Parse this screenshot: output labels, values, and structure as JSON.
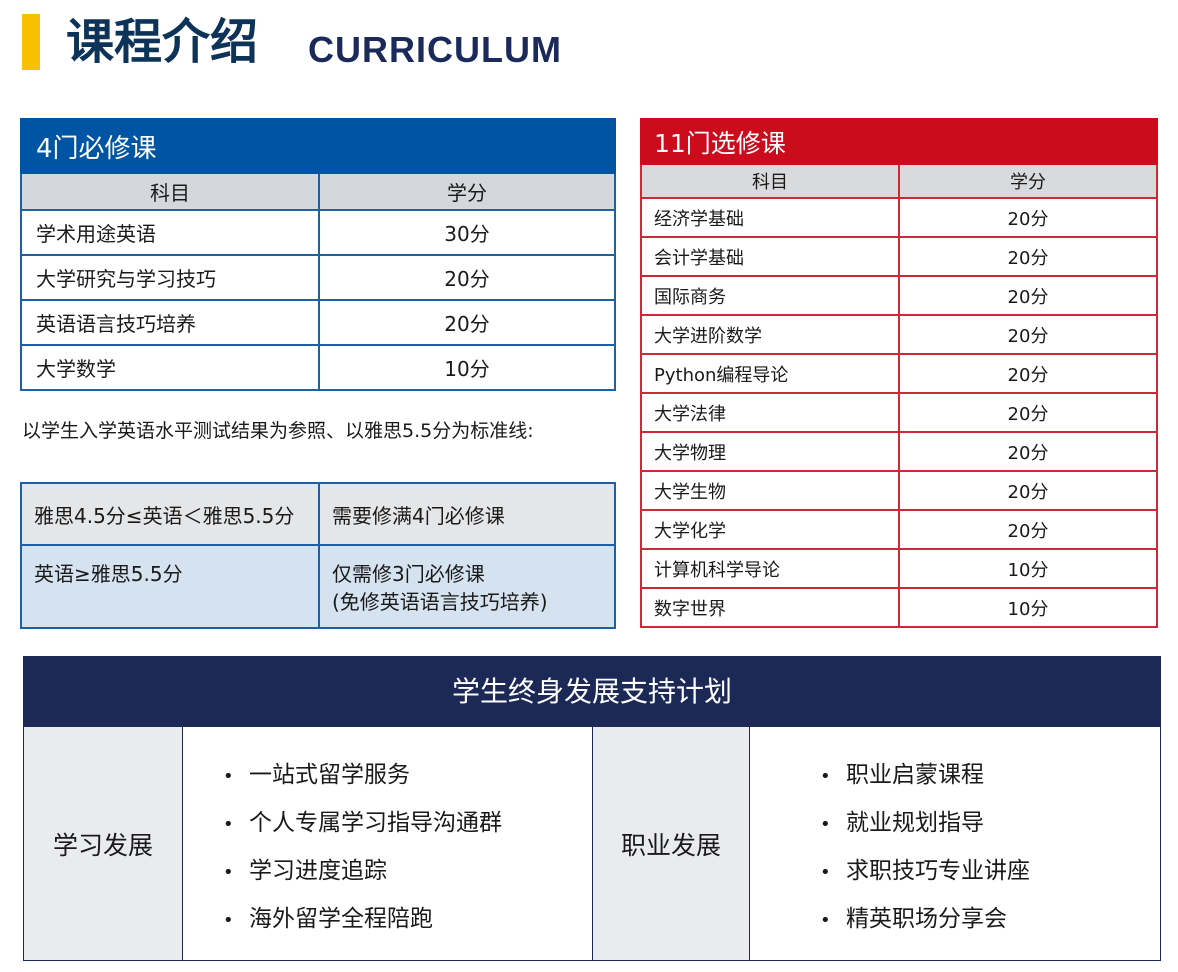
{
  "header": {
    "title": "课程介绍",
    "title_en": "CURRICULUM",
    "accent": "#f9c000"
  },
  "required": {
    "caption": "4门必修课",
    "headers": [
      "科目",
      "学分"
    ],
    "rows": [
      [
        "学术用途英语",
        "30分"
      ],
      [
        "大学研究与学习技巧",
        "20分"
      ],
      [
        "英语语言技巧培养",
        "20分"
      ],
      [
        "大学数学",
        "10分"
      ]
    ],
    "color": "#0054a4"
  },
  "note": "以学生入学英语水平测试结果为参照、以雅思5.5分为标准线:",
  "conditions": [
    {
      "condition": "雅思4.5分≤英语＜雅思5.5分",
      "result": "需要修满4门必修课",
      "result2": ""
    },
    {
      "condition": "英语≥雅思5.5分",
      "result": "仅需修3门必修课",
      "result2": "(免修英语语言技巧培养)"
    }
  ],
  "electives": {
    "caption": "11门选修课",
    "headers": [
      "科目",
      "学分"
    ],
    "rows": [
      [
        "经济学基础",
        "20分"
      ],
      [
        "会计学基础",
        "20分"
      ],
      [
        "国际商务",
        "20分"
      ],
      [
        "大学进阶数学",
        "20分"
      ],
      [
        "Python编程导论",
        "20分"
      ],
      [
        "大学法律",
        "20分"
      ],
      [
        "大学物理",
        "20分"
      ],
      [
        "大学生物",
        "20分"
      ],
      [
        "大学化学",
        "20分"
      ],
      [
        "计算机科学导论",
        "10分"
      ],
      [
        "数字世界",
        "10分"
      ]
    ],
    "color": "#cc0b1c"
  },
  "plan": {
    "title": "学生终身发展支持计划",
    "groups": [
      {
        "label": "学习发展",
        "items": [
          "一站式留学服务",
          "个人专属学习指导沟通群",
          "学习进度追踪",
          "海外留学全程陪跑"
        ]
      },
      {
        "label": "职业发展",
        "items": [
          "职业启蒙课程",
          "就业规划指导",
          "求职技巧专业讲座",
          "精英职场分享会"
        ]
      }
    ],
    "color": "#1c2957"
  }
}
